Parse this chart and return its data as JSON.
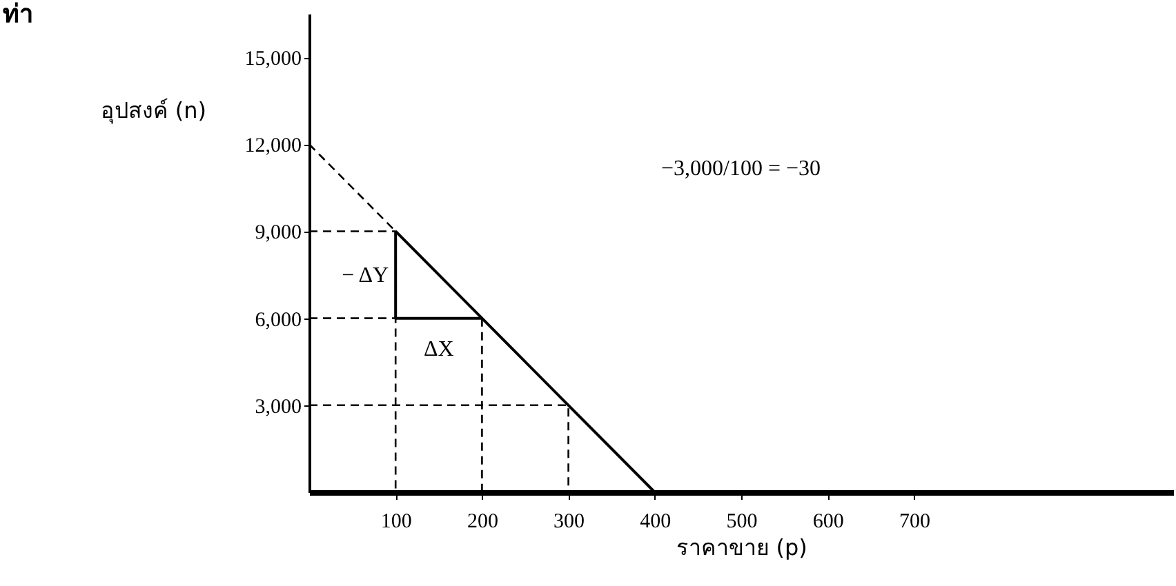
{
  "chart_data": {
    "type": "line",
    "title": "ท่า",
    "xlabel": "ราคาขาย (p)",
    "ylabel": "อุปสงค์ (n)",
    "xlim": [
      0,
      1000
    ],
    "ylim": [
      0,
      16500
    ],
    "xticks": [
      100,
      200,
      300,
      400,
      500,
      600,
      700
    ],
    "yticks": [
      {
        "value": 3000,
        "label": "3,000"
      },
      {
        "value": 6000,
        "label": "6,000"
      },
      {
        "value": 9000,
        "label": "9,000"
      },
      {
        "value": 12000,
        "label": "12,000"
      },
      {
        "value": 15000,
        "label": "15,000"
      }
    ],
    "grid": false,
    "marker": "none",
    "series": [
      {
        "color": "#000000",
        "line_style": "solid",
        "x": [
          100,
          200,
          300,
          400
        ],
        "values": [
          9000,
          6000,
          3000,
          0
        ]
      },
      {
        "color": "#000000",
        "line_style": "dashed",
        "x": [
          0,
          100
        ],
        "values": [
          12000,
          9000
        ]
      },
      {
        "color": "#000000",
        "line_style": "dashed",
        "x": [
          0,
          100,
          100
        ],
        "values": [
          9000,
          9000,
          6000
        ]
      },
      {
        "color": "#000000",
        "line_style": "dashed",
        "x": [
          0,
          100,
          100
        ],
        "values": [
          6000,
          6000,
          0
        ]
      },
      {
        "color": "#000000",
        "line_style": "dashed",
        "x": [
          200,
          200
        ],
        "values": [
          6000,
          0
        ]
      },
      {
        "color": "#000000",
        "line_style": "dashed",
        "x": [
          0,
          300,
          300
        ],
        "values": [
          3000,
          3000,
          0
        ]
      },
      {
        "color": "#000000",
        "line_style": "solid",
        "x": [
          100,
          100,
          200
        ],
        "values": [
          9000,
          6000,
          6000
        ]
      }
    ],
    "annotations": [
      {
        "text": "− ΔY",
        "x": 100,
        "y": 7500
      },
      {
        "text": "ΔX",
        "x": 150,
        "y": 6000
      },
      "−3,000/100 = −30"
    ]
  }
}
